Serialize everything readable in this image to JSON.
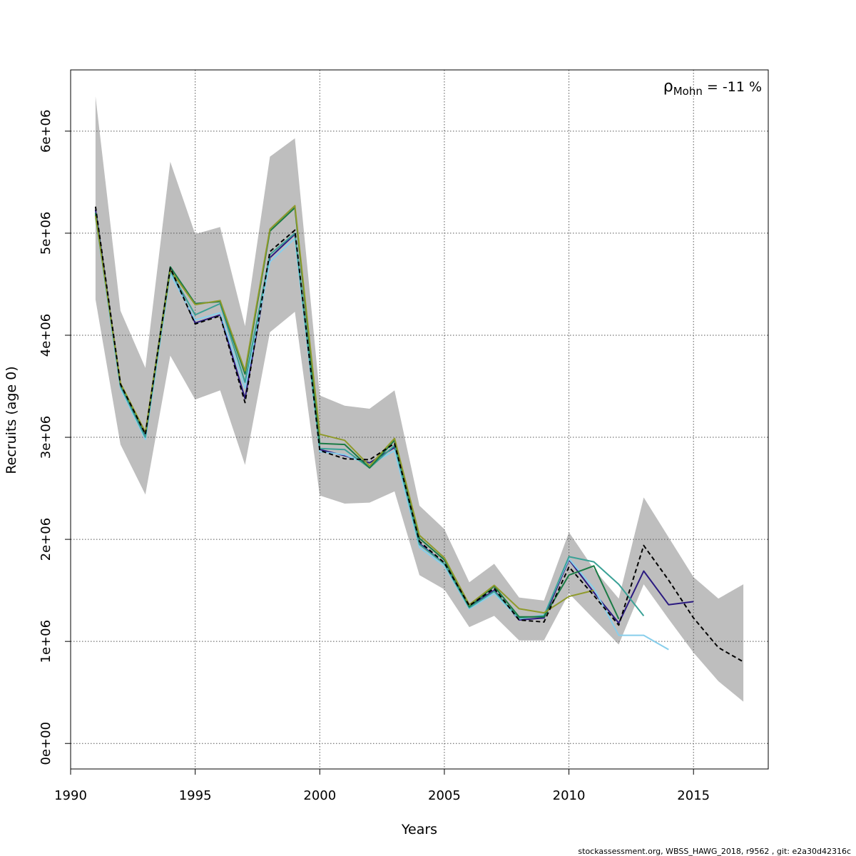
{
  "chart_data": {
    "type": "line",
    "xlabel": "Years",
    "ylabel": "Recruits (age 0)",
    "xlim": [
      1990,
      2018
    ],
    "ylim": [
      -250000,
      6600000
    ],
    "x_ticks": [
      1990,
      1995,
      2000,
      2005,
      2010,
      2015
    ],
    "x_tick_labels": [
      "1990",
      "1995",
      "2000",
      "2005",
      "2010",
      "2015"
    ],
    "y_ticks": [
      0,
      1000000,
      2000000,
      3000000,
      4000000,
      5000000,
      6000000
    ],
    "y_tick_labels": [
      "0e+00",
      "1e+06",
      "2e+06",
      "3e+06",
      "4e+06",
      "5e+06",
      "6e+06"
    ],
    "grid": true,
    "annotation": {
      "symbol": "ρ",
      "subscript": "Mohn",
      "text": " = -11 %"
    },
    "confidence_band": {
      "color": "#bebebe",
      "x": [
        1991,
        1992,
        1993,
        1994,
        1995,
        1996,
        1997,
        1998,
        1999,
        2000,
        2001,
        2002,
        2003,
        2004,
        2005,
        2006,
        2007,
        2008,
        2009,
        2010,
        2011,
        2012,
        2013,
        2014,
        2015,
        2016,
        2017
      ],
      "lower": [
        4350000,
        2930000,
        2440000,
        3800000,
        3370000,
        3460000,
        2730000,
        4030000,
        4230000,
        2430000,
        2350000,
        2360000,
        2470000,
        1650000,
        1510000,
        1140000,
        1250000,
        1010000,
        1010000,
        1470000,
        1220000,
        970000,
        1560000,
        1220000,
        890000,
        610000,
        410000
      ],
      "upper": [
        6340000,
        4240000,
        3680000,
        5700000,
        4990000,
        5060000,
        4090000,
        5750000,
        5930000,
        3410000,
        3310000,
        3280000,
        3460000,
        2330000,
        2100000,
        1580000,
        1760000,
        1430000,
        1400000,
        2070000,
        1710000,
        1420000,
        2410000,
        2020000,
        1630000,
        1420000,
        1560000
      ]
    },
    "series": [
      {
        "color": "#000000",
        "dashed": true,
        "x": [
          1991,
          1992,
          1993,
          1994,
          1995,
          1996,
          1997,
          1998,
          1999,
          2000,
          2001,
          2002,
          2003,
          2004,
          2005,
          2006,
          2007,
          2008,
          2009,
          2010,
          2011,
          2012,
          2013,
          2014,
          2015,
          2016,
          2017
        ],
        "values": [
          5260000,
          3520000,
          3030000,
          4660000,
          4110000,
          4190000,
          3340000,
          4820000,
          5030000,
          2870000,
          2790000,
          2780000,
          2940000,
          1980000,
          1770000,
          1350000,
          1520000,
          1210000,
          1190000,
          1730000,
          1450000,
          1160000,
          1940000,
          1600000,
          1230000,
          940000,
          800000
        ]
      },
      {
        "color": "#2b1a80",
        "dashed": false,
        "x": [
          1991,
          1992,
          1993,
          1994,
          1995,
          1996,
          1997,
          1998,
          1999,
          2000,
          2001,
          2002,
          2003,
          2004,
          2005,
          2006,
          2007,
          2008,
          2009,
          2010,
          2011,
          2012,
          2013,
          2014,
          2015
        ],
        "values": [
          5230000,
          3510000,
          3020000,
          4650000,
          4120000,
          4200000,
          3380000,
          4760000,
          4990000,
          2880000,
          2820000,
          2750000,
          2900000,
          1960000,
          1760000,
          1340000,
          1500000,
          1210000,
          1230000,
          1800000,
          1480000,
          1180000,
          1690000,
          1360000,
          1390000
        ]
      },
      {
        "color": "#87ceeb",
        "dashed": false,
        "x": [
          1991,
          1992,
          1993,
          1994,
          1995,
          1996,
          1997,
          1998,
          1999,
          2000,
          2001,
          2002,
          2003,
          2004,
          2005,
          2006,
          2007,
          2008,
          2009,
          2010,
          2011,
          2012,
          2013,
          2014
        ],
        "values": [
          5150000,
          3480000,
          2980000,
          4600000,
          4150000,
          4220000,
          3480000,
          4720000,
          4950000,
          2860000,
          2830000,
          2730000,
          2870000,
          1920000,
          1740000,
          1320000,
          1470000,
          1220000,
          1260000,
          1810000,
          1520000,
          1060000,
          1060000,
          920000
        ]
      },
      {
        "color": "#3aa196",
        "dashed": false,
        "x": [
          1991,
          1992,
          1993,
          1994,
          1995,
          1996,
          1997,
          1998,
          1999,
          2000,
          2001,
          2002,
          2003,
          2004,
          2005,
          2006,
          2007,
          2008,
          2009,
          2010,
          2011,
          2012,
          2013
        ],
        "values": [
          5180000,
          3500000,
          3000000,
          4630000,
          4200000,
          4310000,
          3540000,
          4790000,
          5000000,
          2890000,
          2880000,
          2700000,
          2920000,
          1950000,
          1760000,
          1330000,
          1490000,
          1230000,
          1250000,
          1830000,
          1780000,
          1560000,
          1250000
        ]
      },
      {
        "color": "#1a7a45",
        "dashed": false,
        "x": [
          1991,
          1992,
          1993,
          1994,
          1995,
          1996,
          1997,
          1998,
          1999,
          2000,
          2001,
          2002,
          2003,
          2004,
          2005,
          2006,
          2007,
          2008,
          2009,
          2010,
          2011,
          2012
        ],
        "values": [
          5200000,
          3520000,
          3040000,
          4670000,
          4310000,
          4330000,
          3620000,
          5020000,
          5250000,
          2940000,
          2930000,
          2700000,
          2970000,
          2010000,
          1800000,
          1340000,
          1540000,
          1240000,
          1240000,
          1650000,
          1740000,
          1220000
        ]
      },
      {
        "color": "#8f9a2b",
        "dashed": false,
        "x": [
          1991,
          1992,
          1993,
          1994,
          1995,
          1996,
          1997,
          1998,
          1999,
          2000,
          2001,
          2002,
          2003,
          2004,
          2005,
          2006,
          2007,
          2008,
          2009,
          2010,
          2011
        ],
        "values": [
          5170000,
          3530000,
          3050000,
          4640000,
          4300000,
          4340000,
          3650000,
          5040000,
          5270000,
          3030000,
          2970000,
          2720000,
          2990000,
          2040000,
          1820000,
          1360000,
          1550000,
          1320000,
          1280000,
          1440000,
          1500000
        ]
      }
    ]
  },
  "footer": "stockassessment.org, WBSS_HAWG_2018, r9562 , git: e2a30d42316c"
}
